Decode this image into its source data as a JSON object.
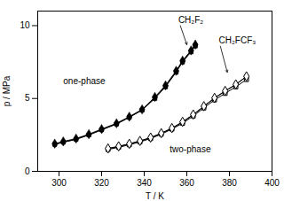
{
  "chart_data": {
    "type": "line",
    "xlabel": "T / K",
    "ylabel": "p / MPa",
    "xlim": [
      290,
      400
    ],
    "ylim": [
      0,
      11
    ],
    "xticks": [
      300,
      320,
      340,
      360,
      380,
      400
    ],
    "yticks": [
      0,
      5,
      10
    ],
    "grid": false,
    "series": [
      {
        "marker": "square",
        "color": "black",
        "line_style": "solid",
        "x": [
          298,
          302,
          308,
          314,
          320,
          327,
          333,
          339,
          345,
          350,
          355,
          358,
          362,
          364
        ],
        "values": [
          1.85,
          2.0,
          2.2,
          2.5,
          2.85,
          3.25,
          3.7,
          4.2,
          5.0,
          5.8,
          6.8,
          7.5,
          8.2,
          8.6
        ]
      },
      {
        "marker": "circle",
        "color": "black",
        "line_style": "solid",
        "x": [
          298,
          302,
          308,
          314,
          320,
          327,
          333,
          339,
          345,
          350,
          355,
          358,
          362,
          364
        ],
        "values": [
          1.85,
          2.0,
          2.2,
          2.5,
          2.85,
          3.25,
          3.72,
          4.22,
          5.05,
          5.85,
          6.85,
          7.55,
          8.25,
          8.65
        ]
      },
      {
        "marker": "diamond",
        "color": "black",
        "line_style": "solid",
        "x": [
          298,
          302,
          308,
          314,
          320,
          327,
          333,
          339,
          345,
          350,
          355,
          358,
          362,
          364
        ],
        "values": [
          1.9,
          2.05,
          2.25,
          2.55,
          2.9,
          3.3,
          3.75,
          4.25,
          5.1,
          5.9,
          6.9,
          7.6,
          8.3,
          8.7
        ]
      },
      {
        "marker": "open_square",
        "color": "black",
        "line_style": "solid",
        "x": [
          323,
          328,
          333,
          338,
          343,
          348,
          353,
          358,
          363,
          368,
          373,
          378,
          383,
          388
        ],
        "values": [
          1.5,
          1.65,
          1.82,
          2.02,
          2.25,
          2.55,
          2.9,
          3.3,
          3.8,
          4.35,
          4.9,
          5.35,
          5.8,
          6.3
        ]
      },
      {
        "marker": "open_circle",
        "color": "black",
        "line_style": "solid",
        "x": [
          323,
          328,
          333,
          338,
          343,
          348,
          353,
          358,
          363,
          368,
          373,
          378,
          383,
          388
        ],
        "values": [
          1.55,
          1.7,
          1.87,
          2.07,
          2.3,
          2.6,
          2.95,
          3.38,
          3.88,
          4.45,
          5.02,
          5.5,
          5.95,
          6.5
        ]
      },
      {
        "marker": "open_diamond",
        "color": "black",
        "line_style": "solid",
        "x": [
          323,
          328,
          333,
          338,
          343,
          348,
          353,
          358,
          363,
          368,
          373,
          378,
          383,
          388
        ],
        "values": [
          1.57,
          1.72,
          1.89,
          2.09,
          2.32,
          2.62,
          2.97,
          3.4,
          3.9,
          4.47,
          5.04,
          5.52,
          5.97,
          6.52
        ]
      }
    ],
    "annotations": [
      {
        "text": "one-phase",
        "x": 302,
        "y": 6.2
      },
      {
        "text": "two-phase",
        "x": 352,
        "y": 1.5
      },
      {
        "text": "CH₂F₂",
        "x": 356,
        "y": 10.4,
        "arrow_to": [
          360,
          8.7
        ]
      },
      {
        "text": "CH₂FCF₃",
        "x": 375,
        "y": 9.0,
        "arrow_to": [
          379,
          6.8
        ]
      }
    ]
  }
}
